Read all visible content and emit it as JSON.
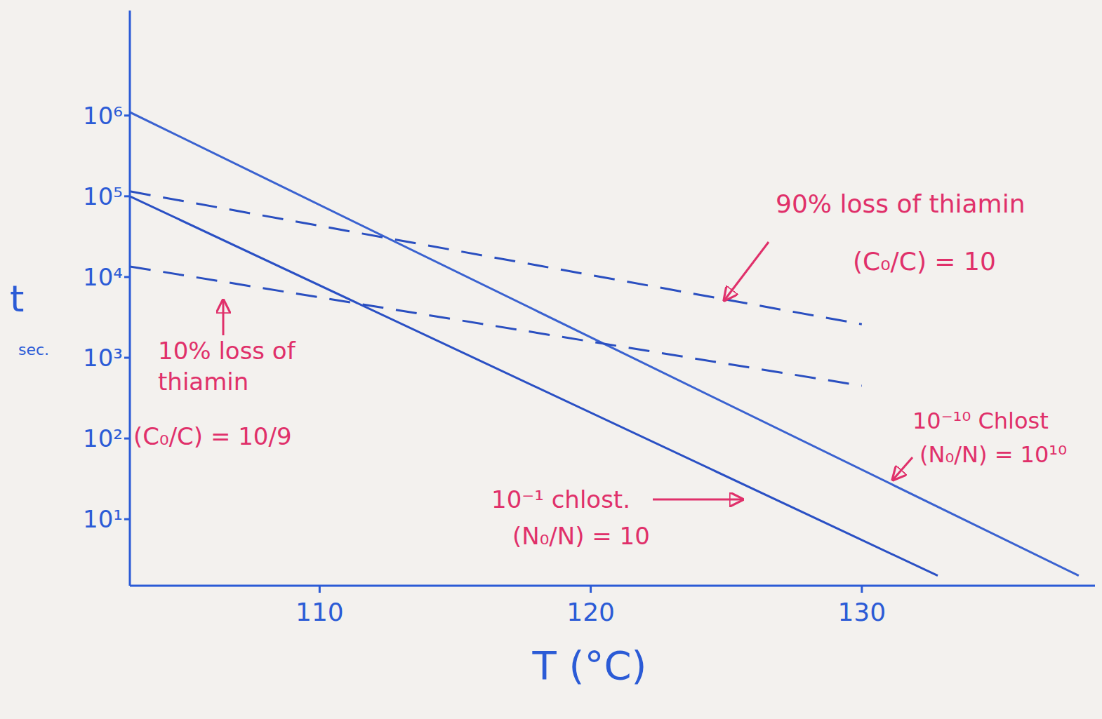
{
  "chart_data": {
    "type": "line",
    "x_label": "T (°C)",
    "y_label": "t",
    "y_label_unit": "sec.",
    "log": "y",
    "grid": false,
    "xlim": [
      103,
      138.6
    ],
    "xticks": [
      110,
      120,
      130
    ],
    "ylim": [
      1.5,
      20000000
    ],
    "yticks": [
      {
        "value": 10,
        "label": "10¹"
      },
      {
        "value": 100,
        "label": "10²"
      },
      {
        "value": 1000,
        "label": "10³"
      },
      {
        "value": 10000,
        "label": "10⁴"
      },
      {
        "value": 100000,
        "label": "10⁵"
      },
      {
        "value": 1000000,
        "label": "10⁶"
      }
    ],
    "series": [
      {
        "color": "#3a62d0",
        "line_style": "solid",
        "x": [
          103,
          138
        ],
        "values": [
          1100000,
          2
        ]
      },
      {
        "color": "#2a50c4",
        "line_style": "solid",
        "x": [
          103,
          132.8
        ],
        "values": [
          100000,
          2
        ]
      },
      {
        "color": "#2a4fc0",
        "line_style": "dashed",
        "x": [
          103,
          130
        ],
        "values": [
          115000,
          2600
        ]
      },
      {
        "color": "#2a4fc0",
        "line_style": "dashed",
        "x": [
          103,
          130
        ],
        "values": [
          13500,
          450
        ]
      }
    ],
    "annotations": [
      {
        "text": "90% loss of thiamin"
      },
      {
        "text": "(C₀/C) = 10"
      },
      {
        "text": "10% loss of thiamin"
      },
      {
        "text": "(C₀/C) = 10/9"
      },
      {
        "text": "10⁻¹ chlost."
      },
      {
        "text": "(N₀/N) = 10"
      },
      {
        "text": "10⁻¹⁰ Chlost"
      },
      {
        "text": "(N₀/N) = 10¹⁰"
      }
    ]
  }
}
